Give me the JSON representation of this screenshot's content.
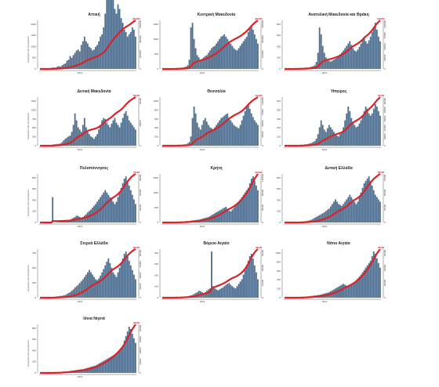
{
  "chart_data": {
    "type": "bar",
    "ylabel_left": "Ημερήσια νέα κρούσματα",
    "xtick": "2021",
    "colors": {
      "bars": "#4f6d8c",
      "line": "#d8232a",
      "label": "#d8232a"
    },
    "panels": [
      {
        "title": "Αττική",
        "peak": 2300,
        "line_end": 600000,
        "end_label": "600000",
        "left_ticks": [
          "0",
          "500",
          "1000",
          "1500",
          "2000"
        ],
        "right_ticks": [
          "0",
          "200000",
          "400000",
          "600000"
        ],
        "bars": [
          0,
          0,
          0,
          0,
          1,
          1,
          1,
          2,
          3,
          3,
          3,
          5,
          6,
          5,
          8,
          10,
          12,
          18,
          20,
          28,
          24,
          30,
          35,
          40,
          42,
          38,
          52,
          60,
          70,
          60,
          55,
          48,
          45,
          40,
          42,
          48,
          52,
          60,
          70,
          75,
          90,
          120,
          150,
          180,
          160,
          170,
          150,
          130,
          120,
          140,
          130,
          110,
          100,
          85,
          80,
          70,
          75,
          80,
          90,
          85,
          70
        ]
      },
      {
        "title": "Κεντρική Μακεδονία",
        "peak": 1500,
        "line_end": 330000,
        "end_label": "330000",
        "left_ticks": [
          "0",
          "500",
          "1000",
          "1500"
        ],
        "right_ticks": [
          "0",
          "100000",
          "200000",
          "300000"
        ],
        "bars": [
          0,
          0,
          0,
          0,
          0,
          0,
          1,
          1,
          1,
          2,
          2,
          2,
          3,
          3,
          4,
          5,
          8,
          20,
          90,
          100,
          65,
          45,
          30,
          25,
          20,
          22,
          25,
          28,
          30,
          35,
          40,
          45,
          48,
          50,
          55,
          60,
          65,
          70,
          72,
          75,
          70,
          65,
          60,
          55,
          50,
          45,
          42,
          40,
          45,
          50,
          55,
          60,
          65,
          70,
          80,
          90,
          95,
          85,
          75,
          65,
          55
        ]
      },
      {
        "title": "Ανατολική Μακεδονία και Θράκη",
        "peak": 900,
        "line_end": 100000,
        "end_label": "100000",
        "left_ticks": [
          "0",
          "200",
          "400",
          "600",
          "800"
        ],
        "right_ticks": [
          "0",
          "25000",
          "50000",
          "75000",
          "100000"
        ],
        "bars": [
          0,
          0,
          0,
          0,
          0,
          0,
          1,
          1,
          1,
          1,
          2,
          2,
          2,
          3,
          3,
          3,
          4,
          5,
          6,
          8,
          15,
          35,
          90,
          75,
          50,
          35,
          25,
          20,
          18,
          16,
          18,
          20,
          22,
          25,
          28,
          32,
          36,
          40,
          45,
          50,
          55,
          60,
          52,
          45,
          40,
          38,
          42,
          48,
          55,
          62,
          70,
          60,
          55,
          62,
          70,
          80,
          90,
          100,
          85,
          70,
          60
        ]
      },
      {
        "title": "Δυτική Μακεδονία",
        "peak": 1300,
        "line_end": 55000,
        "end_label": "55000",
        "left_ticks": [
          "0",
          "250",
          "500",
          "750",
          "1000",
          "1250"
        ],
        "right_ticks": [
          "0",
          "20000",
          "40000"
        ],
        "bars": [
          0,
          0,
          0,
          0,
          0,
          0,
          1,
          1,
          2,
          3,
          3,
          4,
          4,
          5,
          8,
          12,
          15,
          18,
          20,
          22,
          30,
          45,
          70,
          55,
          40,
          35,
          30,
          45,
          60,
          40,
          30,
          25,
          20,
          18,
          15,
          20,
          25,
          35,
          45,
          55,
          60,
          58,
          50,
          45,
          40,
          48,
          55,
          60,
          50,
          45,
          40,
          50,
          60,
          70,
          75,
          65,
          55,
          50,
          45,
          40,
          35
        ]
      },
      {
        "title": "Θεσσαλία",
        "peak": 1000,
        "line_end": 110000,
        "end_label": "110000",
        "left_ticks": [
          "0",
          "200",
          "400",
          "600",
          "800",
          "1000"
        ],
        "right_ticks": [
          "0",
          "25000",
          "50000",
          "75000",
          "100000"
        ],
        "bars": [
          0,
          0,
          0,
          0,
          0,
          0,
          0,
          1,
          1,
          1,
          1,
          2,
          2,
          2,
          3,
          3,
          5,
          8,
          20,
          60,
          85,
          70,
          50,
          40,
          35,
          45,
          55,
          60,
          52,
          45,
          40,
          38,
          36,
          40,
          45,
          50,
          55,
          60,
          62,
          65,
          68,
          70,
          60,
          55,
          50,
          45,
          42,
          40,
          38,
          45,
          55,
          65,
          75,
          85,
          90,
          80,
          70,
          62,
          55,
          50,
          45
        ]
      },
      {
        "title": "Ήπειρος",
        "peak": 500,
        "line_end": 50000,
        "end_label": "50000",
        "left_ticks": [
          "0",
          "100",
          "200",
          "300",
          "400",
          "500"
        ],
        "right_ticks": [
          "0",
          "10000",
          "20000",
          "30000",
          "40000",
          "50000"
        ],
        "bars": [
          0,
          0,
          0,
          0,
          0,
          0,
          0,
          0,
          1,
          1,
          1,
          2,
          2,
          3,
          3,
          4,
          5,
          6,
          8,
          10,
          15,
          25,
          40,
          55,
          45,
          35,
          30,
          38,
          45,
          40,
          35,
          30,
          25,
          22,
          20,
          25,
          30,
          40,
          55,
          70,
          85,
          75,
          60,
          50,
          45,
          40,
          42,
          48,
          55,
          65,
          75,
          85,
          80,
          70,
          65,
          70,
          80,
          90,
          85,
          75,
          65
        ]
      },
      {
        "title": "Πελοπόννησος",
        "peak": 850,
        "line_end": 75000,
        "end_label": "75000",
        "left_ticks": [
          "0",
          "200",
          "400",
          "600",
          "800"
        ],
        "right_ticks": [
          "0",
          "20000",
          "40000",
          "60000"
        ],
        "bars": [
          0,
          0,
          0,
          0,
          0,
          0,
          0,
          0,
          55,
          0,
          0,
          1,
          1,
          2,
          2,
          3,
          3,
          4,
          5,
          6,
          8,
          10,
          12,
          15,
          14,
          12,
          10,
          12,
          15,
          18,
          22,
          25,
          28,
          32,
          36,
          40,
          45,
          50,
          55,
          60,
          65,
          70,
          65,
          60,
          55,
          50,
          45,
          40,
          45,
          55,
          65,
          75,
          85,
          95,
          100,
          90,
          80,
          70,
          60,
          50,
          40
        ]
      },
      {
        "title": "Κρήτη",
        "peak": 1500,
        "line_end": 130000,
        "end_label": "130000",
        "left_ticks": [
          "0",
          "500",
          "1000",
          "1500"
        ],
        "right_ticks": [
          "0",
          "40000",
          "80000",
          "120000"
        ],
        "bars": [
          0,
          0,
          0,
          0,
          0,
          0,
          0,
          0,
          1,
          1,
          1,
          1,
          2,
          2,
          2,
          3,
          3,
          3,
          4,
          4,
          5,
          5,
          6,
          6,
          7,
          8,
          9,
          10,
          11,
          12,
          14,
          16,
          18,
          20,
          22,
          24,
          26,
          28,
          30,
          32,
          34,
          30,
          26,
          24,
          28,
          32,
          36,
          40,
          45,
          50,
          55,
          60,
          65,
          70,
          75,
          85,
          95,
          100,
          90,
          80,
          70
        ]
      },
      {
        "title": "Δυτική Ελλάδα",
        "peak": 900,
        "line_end": 95000,
        "end_label": "95000",
        "left_ticks": [
          "0",
          "200",
          "400",
          "600",
          "800"
        ],
        "right_ticks": [
          "0",
          "25000",
          "50000",
          "75000"
        ],
        "bars": [
          0,
          0,
          0,
          0,
          0,
          0,
          0,
          0,
          1,
          1,
          1,
          2,
          2,
          3,
          3,
          4,
          5,
          6,
          8,
          10,
          12,
          14,
          16,
          18,
          20,
          22,
          25,
          28,
          30,
          35,
          40,
          45,
          50,
          45,
          40,
          38,
          36,
          40,
          45,
          50,
          55,
          60,
          55,
          50,
          45,
          40,
          45,
          55,
          65,
          75,
          85,
          90,
          95,
          100,
          90,
          80,
          70,
          60,
          55,
          50,
          45
        ]
      },
      {
        "title": "Στερεά Ελλάδα",
        "peak": 900,
        "line_end": 90000,
        "end_label": "90000",
        "left_ticks": [
          "0",
          "250",
          "500",
          "750"
        ],
        "right_ticks": [
          "0",
          "20000",
          "40000",
          "60000",
          "80000"
        ],
        "bars": [
          0,
          0,
          1,
          0,
          0,
          0,
          0,
          1,
          1,
          2,
          2,
          3,
          3,
          4,
          4,
          5,
          6,
          8,
          10,
          12,
          15,
          18,
          22,
          25,
          28,
          32,
          36,
          40,
          45,
          50,
          55,
          60,
          55,
          50,
          45,
          40,
          38,
          42,
          48,
          55,
          62,
          70,
          78,
          85,
          75,
          65,
          55,
          50,
          45,
          55,
          65,
          75,
          85,
          95,
          100,
          90,
          80,
          70,
          60,
          50,
          40
        ]
      },
      {
        "title": "Βόρειο Αιγαίο",
        "peak": 450,
        "line_end": 30000,
        "end_label": "30000",
        "left_ticks": [
          "0",
          "100",
          "200",
          "300",
          "400"
        ],
        "right_ticks": [
          "0",
          "10000",
          "20000",
          "30000"
        ],
        "bars": [
          0,
          0,
          0,
          0,
          0,
          0,
          0,
          0,
          1,
          1,
          1,
          1,
          2,
          2,
          2,
          3,
          3,
          4,
          5,
          6,
          8,
          10,
          12,
          15,
          14,
          12,
          10,
          12,
          15,
          18,
          20,
          100,
          25,
          20,
          18,
          16,
          18,
          20,
          22,
          25,
          28,
          30,
          32,
          28,
          25,
          22,
          20,
          25,
          30,
          35,
          40,
          50,
          60,
          70,
          80,
          90,
          95,
          85,
          70,
          55,
          40
        ]
      },
      {
        "title": "Νότιο Αιγαίο",
        "peak": 1000,
        "line_end": 65000,
        "end_label": "65000",
        "left_ticks": [
          "0",
          "200",
          "400",
          "600",
          "800",
          "1000"
        ],
        "right_ticks": [
          "0",
          "20000",
          "40000",
          "60000"
        ],
        "bars": [
          0,
          0,
          0,
          0,
          0,
          0,
          0,
          0,
          1,
          1,
          1,
          1,
          2,
          2,
          2,
          3,
          3,
          4,
          4,
          5,
          5,
          6,
          6,
          7,
          8,
          9,
          10,
          11,
          12,
          14,
          16,
          18,
          20,
          22,
          24,
          26,
          28,
          30,
          28,
          26,
          24,
          26,
          28,
          30,
          34,
          38,
          42,
          46,
          50,
          55,
          60,
          65,
          70,
          75,
          80,
          90,
          100,
          95,
          85,
          75,
          65
        ]
      },
      {
        "title": "Ιόνια Νησιά",
        "peak": 900,
        "line_end": 40000,
        "end_label": "40000",
        "left_ticks": [
          "0",
          "200",
          "400",
          "600",
          "800"
        ],
        "right_ticks": [
          "0",
          "10000",
          "20000",
          "30000",
          "40000"
        ],
        "bars": [
          0,
          0,
          0,
          0,
          0,
          0,
          0,
          0,
          1,
          1,
          1,
          1,
          2,
          2,
          2,
          3,
          3,
          3,
          4,
          4,
          5,
          5,
          6,
          6,
          7,
          7,
          8,
          8,
          9,
          10,
          11,
          12,
          13,
          14,
          15,
          16,
          18,
          20,
          22,
          24,
          26,
          28,
          30,
          32,
          34,
          36,
          38,
          40,
          42,
          45,
          50,
          55,
          60,
          70,
          80,
          90,
          100,
          95,
          85,
          75,
          65
        ]
      }
    ]
  }
}
